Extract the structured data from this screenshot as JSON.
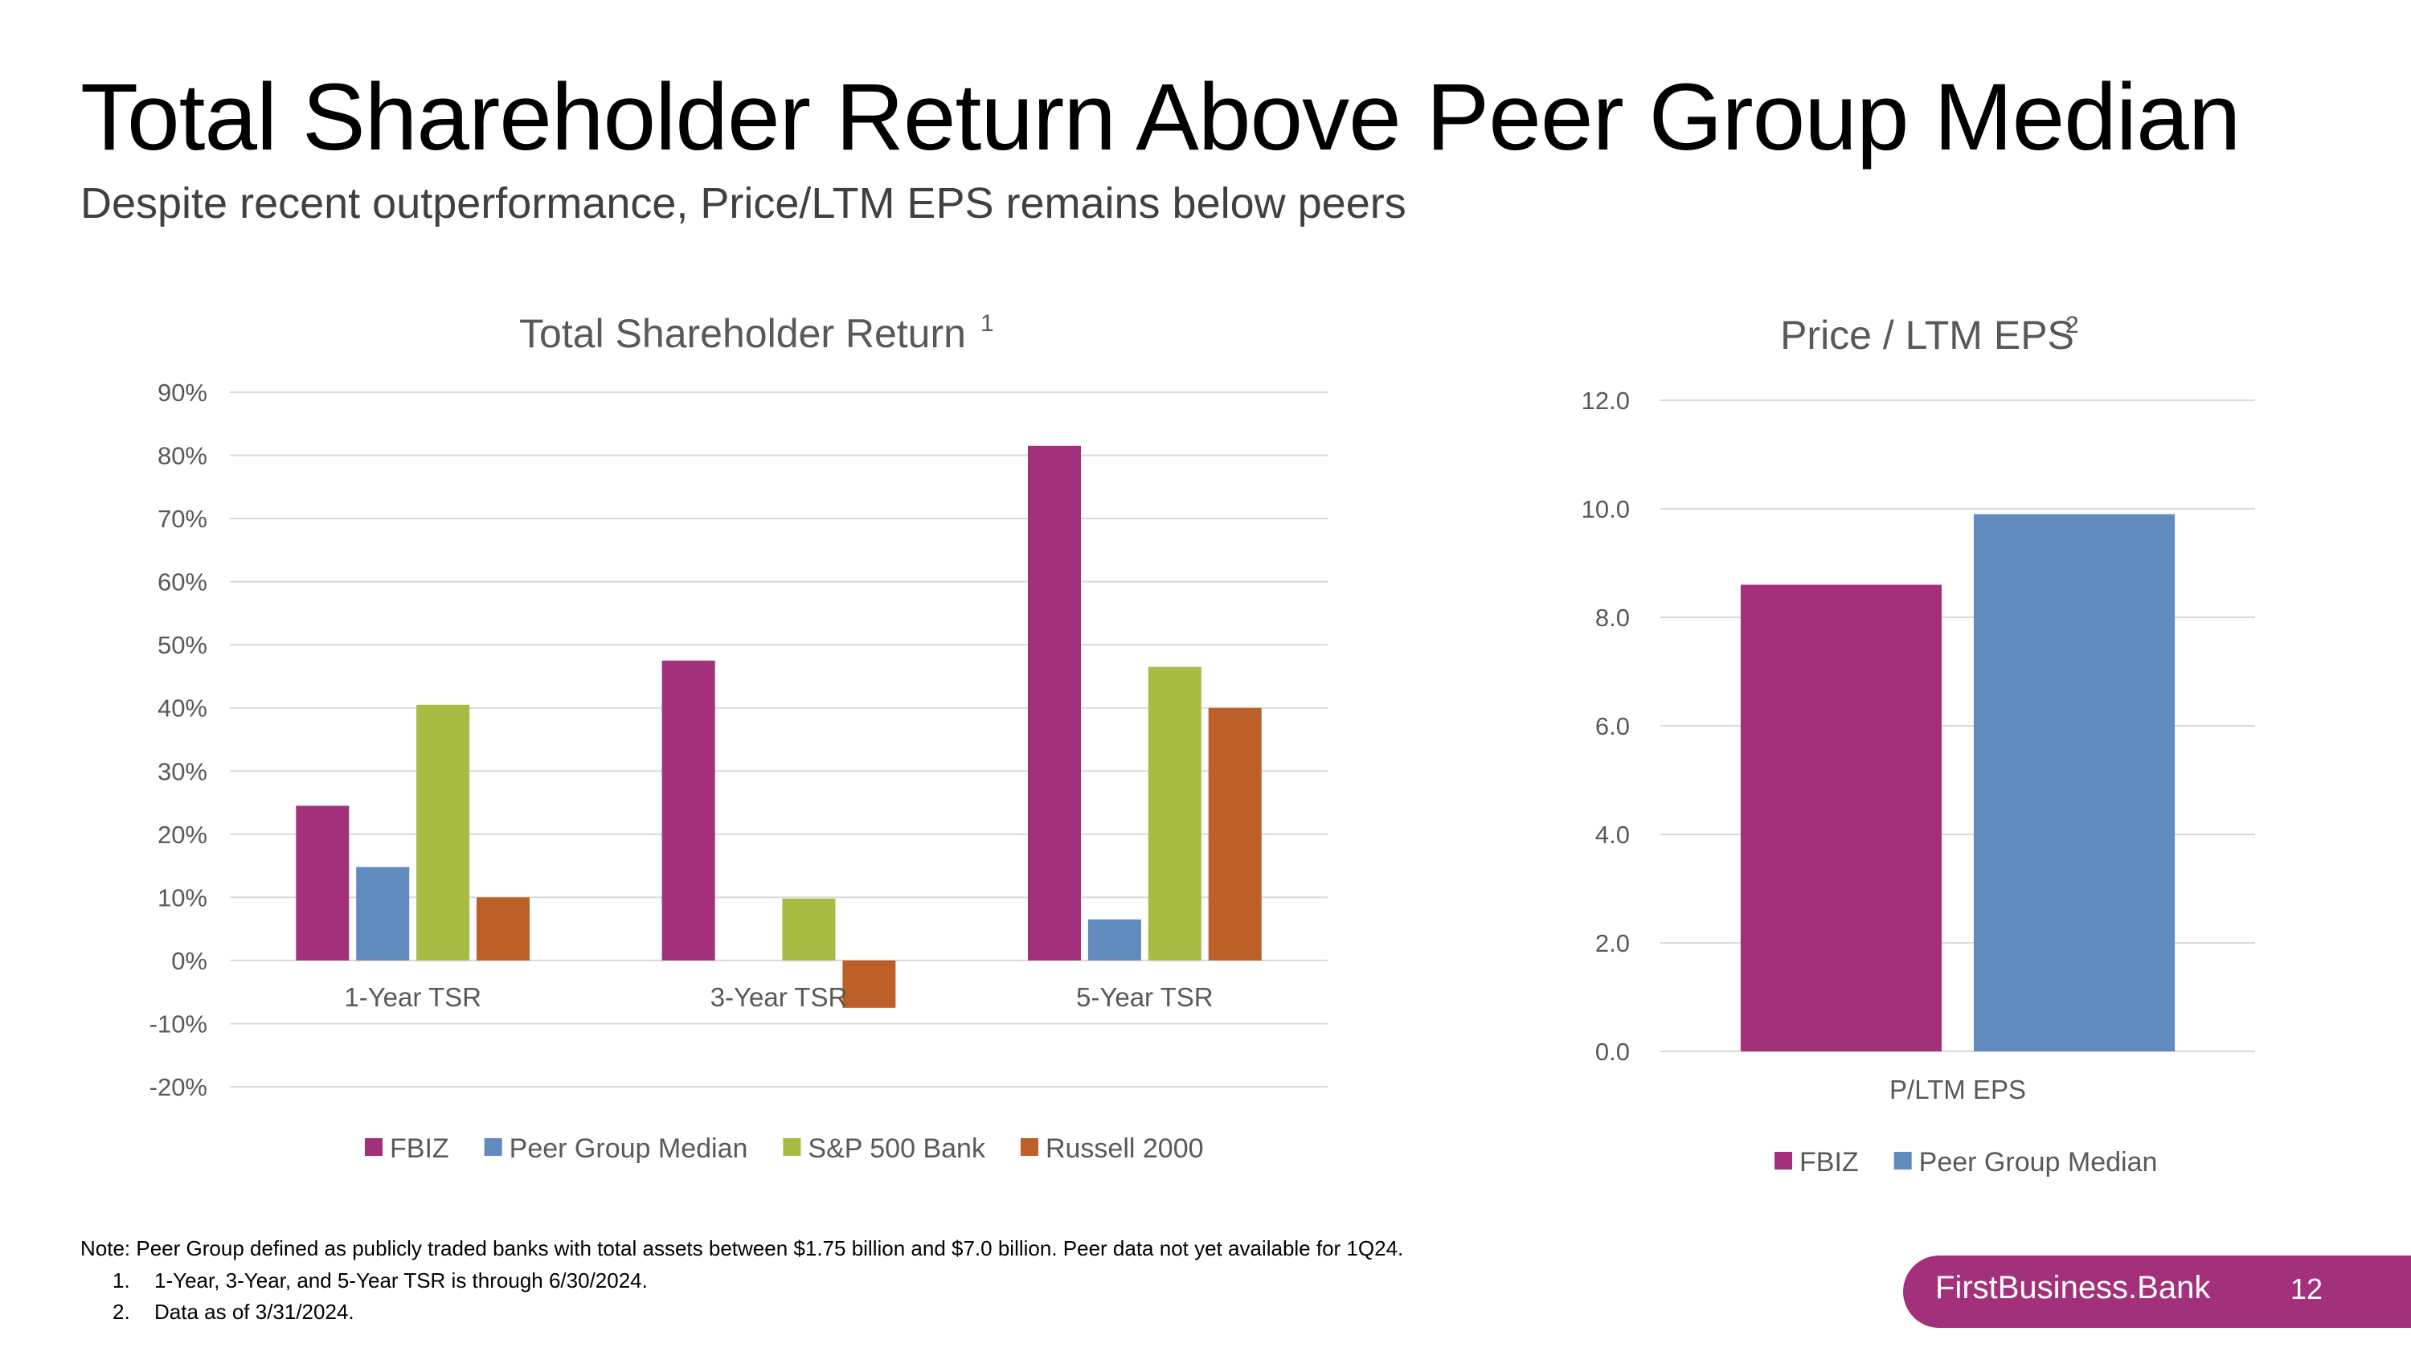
{
  "slide": {
    "title": "Total Shareholder Return Above Peer Group Median",
    "subtitle": "Despite recent outperformance, Price/LTM EPS remains below peers",
    "note": "Note: Peer Group defined as publicly traded banks with total assets between $1.75 billion and $7.0 billion. Peer data not yet available for 1Q24.",
    "footnotes": [
      {
        "num": "1.",
        "text": "1-Year, 3-Year, and 5-Year TSR is through 6/30/2024."
      },
      {
        "num": "2.",
        "text": "Data as of 3/31/2024."
      }
    ],
    "brand": "FirstBusiness.Bank",
    "page_number": "12"
  },
  "colors": {
    "FBIZ": "#a3307a",
    "Peer Group Median": "#618bbf",
    "S&P 500 Bank": "#a8bb42",
    "Russell 2000": "#bd5f28",
    "brand": "#a3307a"
  },
  "chart_data": [
    {
      "type": "bar",
      "title": "Total Shareholder Return",
      "title_footnote": "1",
      "categories": [
        "1-Year TSR",
        "3-Year TSR",
        "5-Year TSR"
      ],
      "series": [
        {
          "name": "FBIZ",
          "values": [
            24.5,
            47.5,
            81.5
          ]
        },
        {
          "name": "Peer Group Median",
          "values": [
            14.8,
            null,
            6.5
          ]
        },
        {
          "name": "S&P 500 Bank",
          "values": [
            40.5,
            9.8,
            46.5
          ]
        },
        {
          "name": "Russell 2000",
          "values": [
            10.0,
            -7.5,
            40.0
          ]
        }
      ],
      "ylim": [
        -20,
        90
      ],
      "yticks": [
        -20,
        -10,
        0,
        10,
        20,
        30,
        40,
        50,
        60,
        70,
        80,
        90
      ],
      "ytick_labels": [
        "-20%",
        "-10%",
        "0%",
        "10%",
        "20%",
        "30%",
        "40%",
        "50%",
        "60%",
        "70%",
        "80%",
        "90%"
      ],
      "xlabel": "",
      "ylabel": "",
      "grid": true,
      "legend": "bottom"
    },
    {
      "type": "bar",
      "title": "Price / LTM EPS",
      "title_footnote": "2",
      "categories": [
        "P/LTM EPS"
      ],
      "series": [
        {
          "name": "FBIZ",
          "values": [
            8.6
          ]
        },
        {
          "name": "Peer Group Median",
          "values": [
            9.9
          ]
        }
      ],
      "ylim": [
        0,
        12
      ],
      "yticks": [
        0,
        2,
        4,
        6,
        8,
        10,
        12
      ],
      "ytick_labels": [
        "0.0",
        "2.0",
        "4.0",
        "6.0",
        "8.0",
        "10.0",
        "12.0"
      ],
      "xlabel": "",
      "ylabel": "",
      "grid": true,
      "legend": "bottom"
    }
  ]
}
